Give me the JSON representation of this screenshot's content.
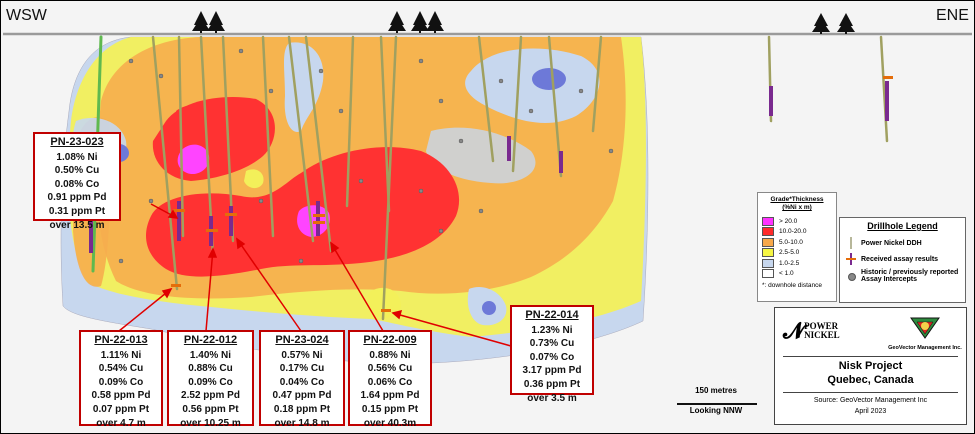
{
  "section_ends": {
    "left": "WSW",
    "right": "ENE"
  },
  "callouts": [
    {
      "hole": "PN-23-023",
      "lines": [
        "1.08% Ni",
        "0.50% Cu",
        "0.08% Co",
        "0.91 ppm Pd",
        "0.31 ppm Pt",
        "over 13.5 m"
      ]
    },
    {
      "hole": "PN-22-013",
      "lines": [
        "1.11% Ni",
        "0.54% Cu",
        "0.09% Co",
        "0.58 ppm Pd",
        "0.07 ppm Pt",
        "over 4.7 m"
      ]
    },
    {
      "hole": "PN-22-012",
      "lines": [
        "1.40% Ni",
        "0.88% Cu",
        "0.09% Co",
        "2.52 ppm Pd",
        "0.56 ppm Pt",
        "over 10.25 m"
      ]
    },
    {
      "hole": "PN-23-024",
      "lines": [
        "0.57% Ni",
        "0.17% Cu",
        "0.04% Co",
        "0.47 ppm Pd",
        "0.18 ppm Pt",
        "over 14.8 m"
      ]
    },
    {
      "hole": "PN-22-009",
      "lines": [
        "0.88% Ni",
        "0.56% Cu",
        "0.06% Co",
        "1.64 ppm Pd",
        "0.15 ppm Pt",
        "over 40.3m"
      ]
    },
    {
      "hole": "PN-22-014",
      "lines": [
        "1.23% Ni",
        "0.73% Cu",
        "0.07% Co",
        "3.17 ppm Pd",
        "0.36 ppm Pt",
        "over 3.5 m"
      ]
    }
  ],
  "grade_legend": {
    "title": "Grade*Thickness",
    "unit": "(%Ni x m)",
    "items": [
      {
        "label": "> 20.0",
        "color": "#ff33ff"
      },
      {
        "label": "10.0-20.0",
        "color": "#ff2a2a"
      },
      {
        "label": "5.0-10.0",
        "color": "#f7a84a"
      },
      {
        "label": "2.5-5.0",
        "color": "#f5f542"
      },
      {
        "label": "1.0-2.5",
        "color": "#c7d7ee"
      },
      {
        "label": "< 1.0",
        "color": "#ffffff"
      }
    ],
    "footnote": "*: downhole distance"
  },
  "drillhole_legend": {
    "title": "Drillhole Legend",
    "items": [
      {
        "label": "Power Nickel DDH",
        "icon": "ddh-trace-icon"
      },
      {
        "label": "Received assay results",
        "icon": "assay-result-icon"
      },
      {
        "label": "Historic / previously reported Assay Intercepts",
        "icon": "historic-intercept-icon"
      }
    ]
  },
  "scale": {
    "label": "150 metres",
    "view": "Looking NNW"
  },
  "infobox": {
    "logo_left": {
      "line1": "POWER",
      "line2": "NICKEL"
    },
    "logo_right": "GeoVector Management Inc.",
    "project": "Nisk Project",
    "location": "Quebec, Canada",
    "source": "Source: GeoVector Management Inc",
    "date": "April 2023"
  }
}
